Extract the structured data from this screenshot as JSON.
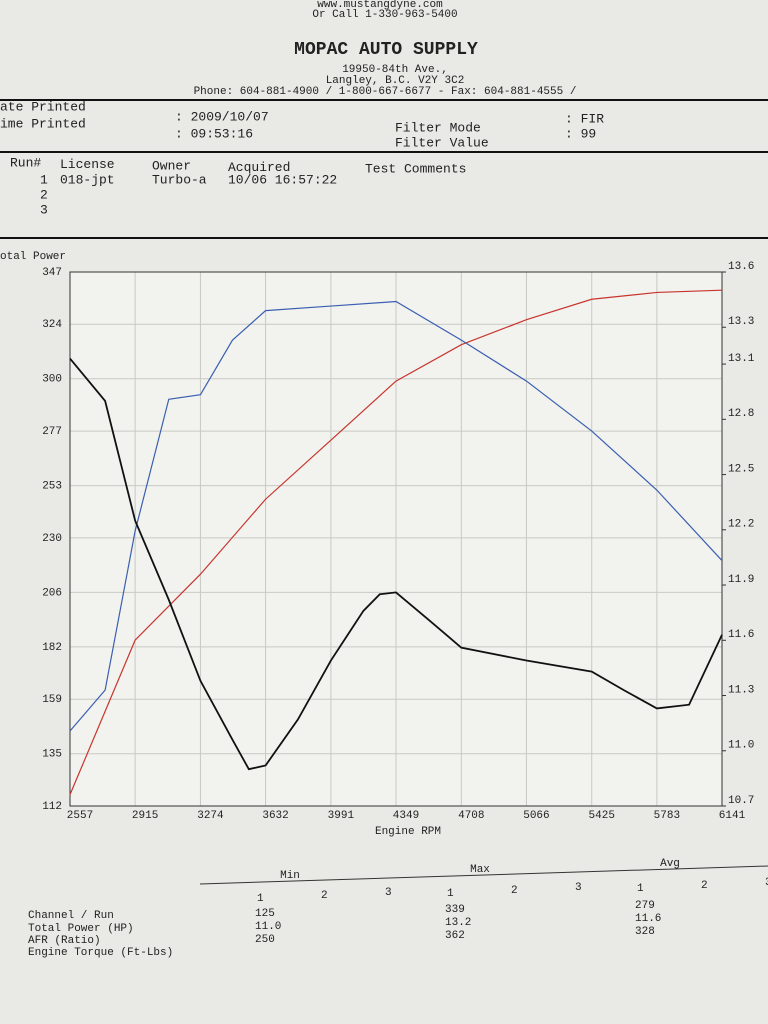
{
  "header": {
    "website": "www.mustangdyne.com",
    "call": "Or Call 1-330-963-5400",
    "company": "MOPAC AUTO SUPPLY",
    "address1": "19950-84th Ave.,",
    "address2": "Langley, B.C. V2Y 3C2",
    "phone": "Phone: 604-881-4900 / 1-800-667-6677 - Fax: 604-881-4555 /"
  },
  "print_info": {
    "date_label": "ate Printed",
    "date_value": ": 2009/10/07",
    "time_label": "ime Printed",
    "time_value": ": 09:53:16",
    "filter_mode_label": "Filter Mode",
    "filter_mode_value": ": FIR",
    "filter_value_label": "Filter Value",
    "filter_value_value": ": 99"
  },
  "runs": {
    "columns": [
      "Run#",
      "License",
      "Owner",
      "Acquired",
      "Test Comments"
    ],
    "rows": [
      [
        "1",
        "018-jpt",
        "Turbo-a",
        "10/06 16:57:22"
      ],
      [
        "2"
      ],
      [
        "3"
      ]
    ]
  },
  "chart_data": {
    "type": "line",
    "y_label": "otal Power",
    "x_label": "Engine RPM",
    "xlim": [
      2557,
      6141
    ],
    "xticks": [
      2557,
      2915,
      3274,
      3632,
      3991,
      4349,
      4708,
      5066,
      5425,
      5783,
      6141
    ],
    "ylim": [
      112,
      347
    ],
    "yticks": [
      112,
      135,
      159,
      182,
      206,
      230,
      253,
      277,
      300,
      324,
      347
    ],
    "y2lim": [
      10.7,
      13.6
    ],
    "y2ticks": [
      10.7,
      {
        "value": 11,
        "label": "11.0"
      },
      11.3,
      11.6,
      11.9,
      12.2,
      12.5,
      12.8,
      13.1,
      13.3,
      13.6
    ],
    "grid": true,
    "series": [
      {
        "color": "#c8352d",
        "x": [
          2557,
          2915,
          3274,
          3632,
          3991,
          4349,
          4708,
          5066,
          5425,
          5783,
          6141
        ],
        "values": [
          117,
          185,
          214,
          247,
          273,
          299,
          315,
          326,
          335,
          338,
          339
        ]
      },
      {
        "color": "#3a5fb0",
        "x": [
          2557,
          2750,
          2915,
          3100,
          3274,
          3450,
          3632,
          3991,
          4349,
          4708,
          5066,
          5425,
          5783,
          6141
        ],
        "values": [
          145,
          163,
          233,
          291,
          293,
          317,
          330,
          332,
          334,
          317,
          299,
          277,
          251,
          220
        ]
      },
      {
        "color": "#111111",
        "axis": "y2",
        "x": [
          2557,
          2750,
          2915,
          3100,
          3274,
          3450,
          3540,
          3632,
          3810,
          3991,
          4170,
          4260,
          4349,
          4530,
          4708,
          5066,
          5425,
          5600,
          5783,
          5960,
          6141
        ],
        "values": [
          13.13,
          12.9,
          12.25,
          11.82,
          11.38,
          11.06,
          10.9,
          10.92,
          11.17,
          11.49,
          11.76,
          11.85,
          11.86,
          11.71,
          11.56,
          11.49,
          11.43,
          11.33,
          11.23,
          11.25,
          11.63
        ]
      }
    ]
  },
  "summary": {
    "groups": [
      "Min",
      "Max",
      "Avg"
    ],
    "runs": [
      "1",
      "2",
      "3"
    ],
    "row_header": "Channel / Run",
    "rows": [
      {
        "label": "Total Power (HP)",
        "values": [
          "125",
          "339",
          "279"
        ]
      },
      {
        "label": "AFR (Ratio)",
        "values": [
          "11.0",
          "13.2",
          "11.6"
        ]
      },
      {
        "label": "Engine Torque (Ft-Lbs)",
        "values": [
          "250",
          "362",
          "328"
        ]
      }
    ]
  }
}
